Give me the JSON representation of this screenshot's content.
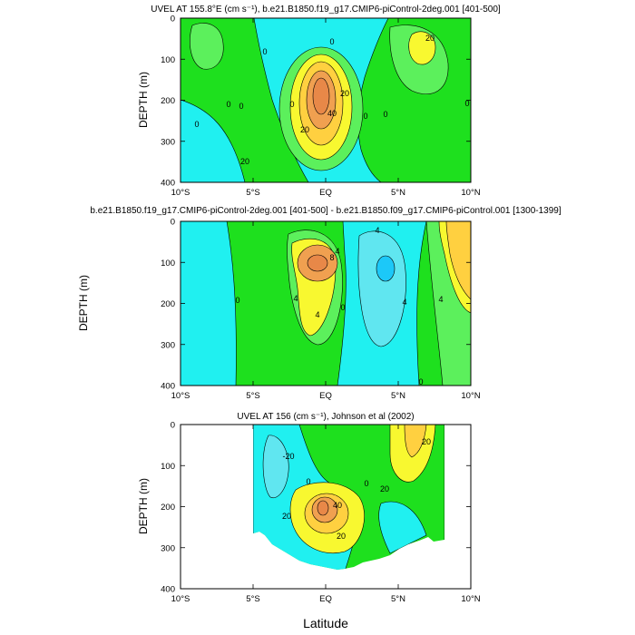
{
  "figure": {
    "xlabel": "Latitude"
  },
  "colors": {
    "green": "#1ee01e",
    "light_green": "#5cf05c",
    "cyan": "#20f0f0",
    "light_cyan": "#60e6f0",
    "blue": "#1cc8f8",
    "yellow": "#f8f830",
    "gold": "#ffd040",
    "orange": "#f0a050",
    "dark_orange": "#e88848"
  },
  "chart_data": [
    {
      "type": "contour",
      "title": "UVEL AT 155.8°E (cm s⁻¹), b.e21.B1850.f19_g17.CMIP6-piControl-2deg.001 [401-500]",
      "xlabel": "",
      "ylabel": "DEPTH (m)",
      "x_ticks": [
        "10°S",
        "5°S",
        "EQ",
        "5°N",
        "10°N"
      ],
      "y_ticks": [
        "0",
        "100",
        "200",
        "300",
        "400"
      ],
      "xlim": [
        -10,
        10
      ],
      "ylim": [
        400,
        0
      ],
      "contour_interval": 10,
      "contour_labels": [
        "0",
        "0",
        "0",
        "0",
        "0",
        "0",
        "0",
        "0",
        "0",
        "20",
        "20",
        "20",
        "40",
        "20"
      ],
      "features": [
        {
          "kind": "jet max",
          "lat": 0,
          "depth": 200,
          "value": 50
        },
        {
          "kind": "eastward",
          "lat": 6.5,
          "depth": 60,
          "value": 25
        },
        {
          "kind": "westward",
          "lat": -2,
          "depth": 80,
          "value": -10
        }
      ]
    },
    {
      "type": "contour",
      "title": "b.e21.B1850.f19_g17.CMIP6-piControl-2deg.001 [401-500] - b.e21.B1850.f09_g17.CMIP6-piControl.001 [1300-1399]",
      "xlabel": "",
      "ylabel": "DEPTH (m)",
      "x_ticks": [
        "10°S",
        "5°S",
        "EQ",
        "5°N",
        "10°N"
      ],
      "y_ticks": [
        "0",
        "100",
        "200",
        "300",
        "400"
      ],
      "xlim": [
        -10,
        10
      ],
      "ylim": [
        400,
        0
      ],
      "contour_interval": 2,
      "contour_labels": [
        "4",
        "4",
        "8",
        "4",
        "0",
        "4",
        "4",
        "4",
        "0",
        "0"
      ],
      "features": [
        {
          "kind": "max",
          "lat": -0.5,
          "depth": 100,
          "value": 10
        },
        {
          "kind": "min",
          "lat": 4,
          "depth": 120,
          "value": -8
        },
        {
          "kind": "max",
          "lat": 9.5,
          "depth": 50,
          "value": 6
        }
      ]
    },
    {
      "type": "contour",
      "title": "UVEL AT 156 (cm s⁻¹), Johnson et al (2002)",
      "xlabel": "Latitude",
      "ylabel": "DEPTH (m)",
      "x_ticks": [
        "10°S",
        "5°S",
        "EQ",
        "5°N",
        "10°N"
      ],
      "y_ticks": [
        "0",
        "100",
        "200",
        "300",
        "400"
      ],
      "xlim": [
        -10,
        10
      ],
      "ylim": [
        400,
        0
      ],
      "contour_interval": 10,
      "contour_labels": [
        "-20",
        "0",
        "0",
        "20",
        "20",
        "40",
        "20",
        "20"
      ],
      "data_extent": {
        "lat_min": -5,
        "lat_max": 8,
        "max_depth": 350
      },
      "features": [
        {
          "kind": "jet max",
          "lat": 0,
          "depth": 200,
          "value": 50
        },
        {
          "kind": "eastward",
          "lat": 5.5,
          "depth": 80,
          "value": 25
        }
      ]
    }
  ]
}
